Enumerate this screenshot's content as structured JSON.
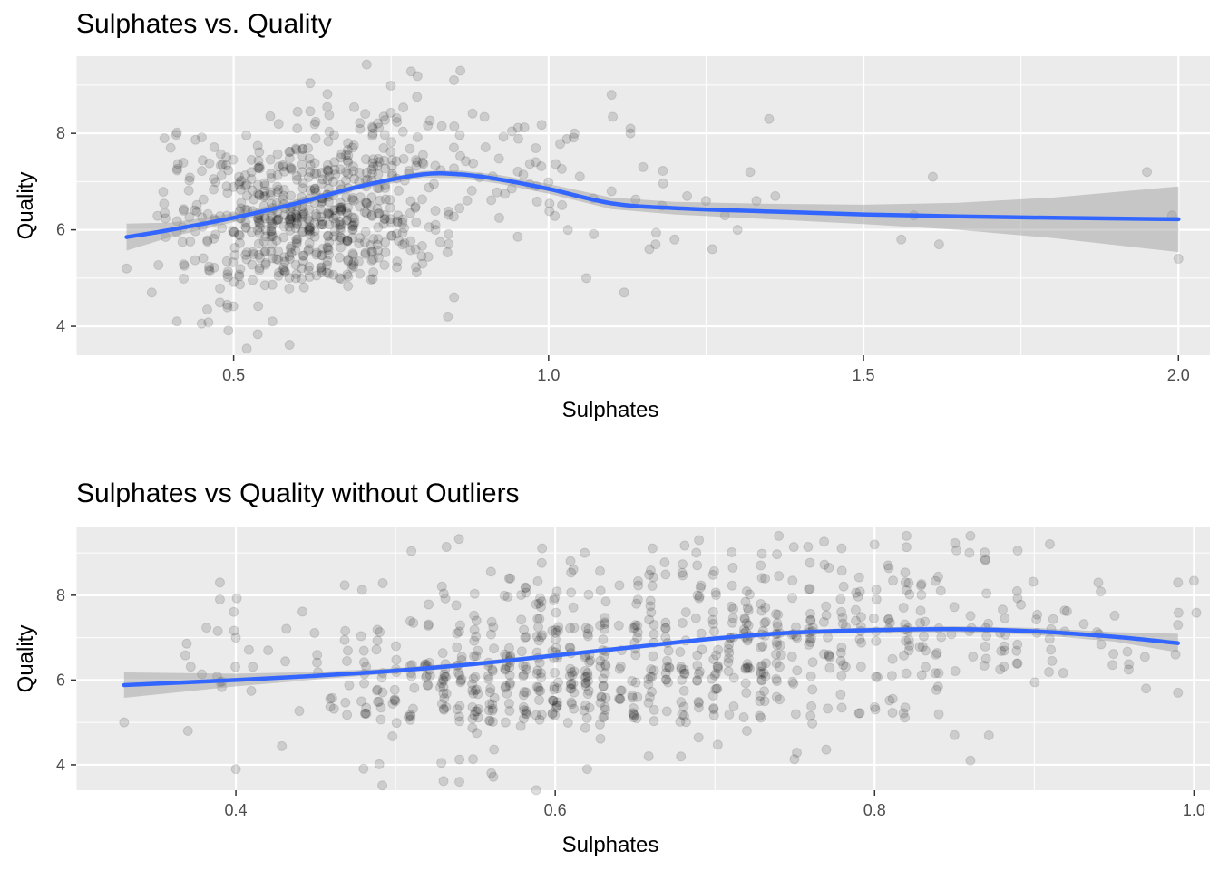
{
  "chart_data": [
    {
      "type": "scatter",
      "title": "Sulphates vs. Quality",
      "xlabel": "Sulphates",
      "ylabel": "Quality",
      "xlim": [
        0.25,
        2.05
      ],
      "ylim": [
        3.4,
        9.6
      ],
      "xticks": [
        "0.5",
        "1.0",
        "1.5",
        "2.0"
      ],
      "xtick_values": [
        0.5,
        1.0,
        1.5,
        2.0
      ],
      "yticks": [
        "4",
        "6",
        "8"
      ],
      "ytick_values": [
        4,
        6,
        8
      ],
      "grid": true,
      "point_color": "#000000",
      "point_alpha": 0.13,
      "jitter": true,
      "clusters": [
        {
          "x_range": [
            0.42,
            0.8
          ],
          "quality": 5,
          "n": 260
        },
        {
          "x_range": [
            0.42,
            0.82
          ],
          "quality": 6,
          "n": 260
        },
        {
          "x_range": [
            0.45,
            0.9
          ],
          "quality": 7,
          "n": 100
        },
        {
          "x_range": [
            0.5,
            0.9
          ],
          "quality": 8,
          "n": 18
        },
        {
          "x_range": [
            0.8,
            1.15
          ],
          "quality": 6,
          "n": 30
        },
        {
          "x_range": [
            0.8,
            1.15
          ],
          "quality": 7,
          "n": 20
        },
        {
          "x_range": [
            0.4,
            0.6
          ],
          "quality": 4,
          "n": 25
        },
        {
          "x_range": [
            0.5,
            0.62
          ],
          "quality": 3,
          "n": 6
        }
      ],
      "points": [
        [
          0.33,
          5.2
        ],
        [
          0.37,
          4.7
        ],
        [
          0.39,
          7.9
        ],
        [
          0.4,
          7.7
        ],
        [
          0.41,
          4.1
        ],
        [
          1.12,
          4.7
        ],
        [
          1.06,
          5.0
        ],
        [
          1.16,
          5.6
        ],
        [
          1.17,
          5.7
        ],
        [
          1.18,
          6.5
        ],
        [
          1.2,
          5.8
        ],
        [
          1.22,
          6.7
        ],
        [
          1.25,
          6.6
        ],
        [
          1.28,
          6.3
        ],
        [
          1.32,
          7.2
        ],
        [
          1.33,
          6.6
        ],
        [
          1.35,
          8.3
        ],
        [
          1.36,
          6.7
        ],
        [
          1.26,
          5.6
        ],
        [
          1.3,
          6.0
        ],
        [
          1.56,
          5.8
        ],
        [
          1.58,
          6.3
        ],
        [
          1.61,
          7.1
        ],
        [
          1.62,
          5.7
        ],
        [
          1.95,
          7.2
        ],
        [
          2.0,
          5.4
        ],
        [
          1.99,
          6.3
        ],
        [
          0.86,
          9.3
        ],
        [
          0.85,
          4.6
        ],
        [
          0.84,
          4.2
        ],
        [
          1.1,
          8.8
        ],
        [
          1.13,
          8.1
        ],
        [
          1.13,
          8.0
        ],
        [
          1.1,
          6.8
        ],
        [
          1.15,
          7.3
        ]
      ],
      "smooth": {
        "color": "#3366ff",
        "band_color": "#999999",
        "x": [
          0.33,
          0.4,
          0.5,
          0.6,
          0.7,
          0.8,
          0.86,
          0.92,
          1.0,
          1.1,
          1.2,
          1.35,
          1.5,
          1.65,
          1.8,
          2.0
        ],
        "y": [
          5.85,
          6.0,
          6.25,
          6.55,
          6.9,
          7.15,
          7.15,
          7.05,
          6.85,
          6.55,
          6.45,
          6.38,
          6.32,
          6.28,
          6.25,
          6.22
        ],
        "se": [
          0.28,
          0.15,
          0.09,
          0.07,
          0.06,
          0.07,
          0.08,
          0.09,
          0.1,
          0.12,
          0.13,
          0.16,
          0.2,
          0.28,
          0.42,
          0.68
        ]
      }
    },
    {
      "type": "scatter",
      "title": "Sulphates vs Quality without Outliers",
      "xlabel": "Sulphates",
      "ylabel": "Quality",
      "xlim": [
        0.3,
        1.01
      ],
      "ylim": [
        3.4,
        9.6
      ],
      "xticks": [
        "0.4",
        "0.6",
        "0.8",
        "1.0"
      ],
      "xtick_values": [
        0.4,
        0.6,
        0.8,
        1.0
      ],
      "yticks": [
        "4",
        "6",
        "8"
      ],
      "ytick_values": [
        4,
        6,
        8
      ],
      "grid": true,
      "point_color": "#000000",
      "point_alpha": 0.13,
      "jitter": true,
      "clusters": [
        {
          "x_range": [
            0.4,
            0.8
          ],
          "quality": 5,
          "n": 300
        },
        {
          "x_range": [
            0.42,
            0.95
          ],
          "quality": 6,
          "n": 300
        },
        {
          "x_range": [
            0.45,
            0.99
          ],
          "quality": 7,
          "n": 160
        },
        {
          "x_range": [
            0.52,
            0.95
          ],
          "quality": 8,
          "n": 60
        },
        {
          "x_range": [
            0.4,
            0.88
          ],
          "quality": 4,
          "n": 25
        },
        {
          "x_range": [
            0.45,
            0.62
          ],
          "quality": 3,
          "n": 6
        }
      ],
      "points": [
        [
          0.33,
          5.0
        ],
        [
          0.37,
          4.8
        ],
        [
          0.39,
          8.3
        ],
        [
          0.39,
          7.9
        ],
        [
          0.4,
          3.9
        ],
        [
          0.4,
          7.0
        ],
        [
          0.99,
          8.3
        ],
        [
          0.99,
          7.3
        ],
        [
          0.99,
          5.7
        ],
        [
          0.97,
          5.8
        ],
        [
          0.74,
          9.4
        ],
        [
          0.69,
          9.3
        ],
        [
          0.82,
          9.4
        ],
        [
          0.86,
          9.4
        ],
        [
          0.72,
          4.8
        ],
        [
          0.86,
          4.1
        ],
        [
          0.85,
          4.7
        ],
        [
          0.62,
          3.9
        ],
        [
          0.54,
          3.6
        ],
        [
          0.56,
          3.8
        ]
      ],
      "smooth": {
        "color": "#3366ff",
        "band_color": "#999999",
        "x": [
          0.33,
          0.4,
          0.45,
          0.5,
          0.55,
          0.6,
          0.65,
          0.7,
          0.75,
          0.8,
          0.85,
          0.9,
          0.95,
          0.99
        ],
        "y": [
          5.88,
          6.0,
          6.1,
          6.22,
          6.38,
          6.58,
          6.78,
          6.98,
          7.12,
          7.18,
          7.2,
          7.15,
          7.02,
          6.87
        ],
        "se": [
          0.3,
          0.15,
          0.09,
          0.06,
          0.05,
          0.05,
          0.05,
          0.05,
          0.06,
          0.06,
          0.07,
          0.08,
          0.11,
          0.22
        ]
      }
    }
  ]
}
